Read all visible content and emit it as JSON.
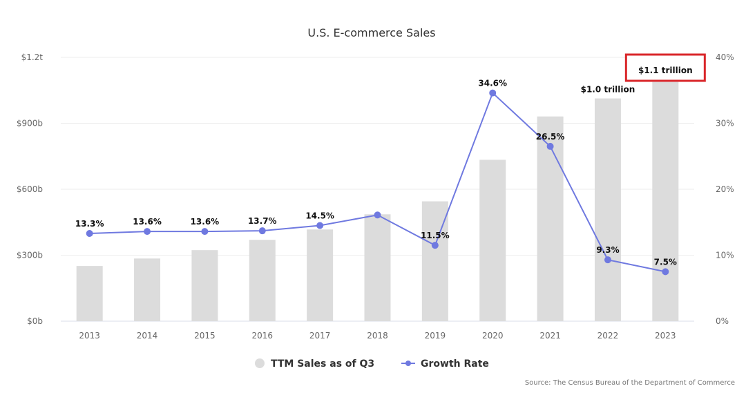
{
  "chart_data": {
    "type": "bar",
    "title": "U.S. E-commerce Sales",
    "categories": [
      "2013",
      "2014",
      "2015",
      "2016",
      "2017",
      "2018",
      "2019",
      "2020",
      "2021",
      "2022",
      "2023"
    ],
    "series": [
      {
        "name": "TTM Sales as of Q3",
        "type": "bar",
        "axis": "left",
        "unit": "billion USD",
        "values": [
          251,
          285,
          323,
          370,
          417,
          486,
          545,
          734,
          931,
          1013,
          1088
        ],
        "color": "#dcdcdc"
      },
      {
        "name": "Growth Rate",
        "type": "line",
        "axis": "right",
        "unit": "%",
        "values": [
          13.3,
          13.6,
          13.6,
          13.7,
          14.5,
          16.1,
          11.5,
          34.6,
          26.5,
          9.3,
          7.5
        ],
        "labels": [
          "13.3%",
          "13.6%",
          "13.6%",
          "13.7%",
          "14.5%",
          "",
          "11.5%",
          "34.6%",
          "26.5%",
          "9.3%",
          "7.5%"
        ],
        "color": "#6f79e0"
      }
    ],
    "bar_annotations": [
      {
        "category": "2022",
        "text": "$1.0 trillion",
        "highlighted": false
      },
      {
        "category": "2023",
        "text": "$1.1 trillion",
        "highlighted": true,
        "highlight_color": "#d9262a"
      }
    ],
    "y_left": {
      "range": [
        0,
        1200
      ],
      "ticks": [
        0,
        300,
        600,
        900,
        1200
      ],
      "tick_labels": [
        "$0b",
        "$300b",
        "$600b",
        "$900b",
        "$1.2t"
      ]
    },
    "y_right": {
      "range": [
        0,
        40
      ],
      "ticks": [
        0,
        10,
        20,
        30,
        40
      ],
      "tick_labels": [
        "0%",
        "10%",
        "20%",
        "30%",
        "40%"
      ]
    },
    "grid": true,
    "legend": {
      "position": "bottom",
      "items": [
        "TTM Sales as of Q3",
        "Growth Rate"
      ]
    },
    "source": "Source: The Census Bureau of the Department of Commerce"
  }
}
